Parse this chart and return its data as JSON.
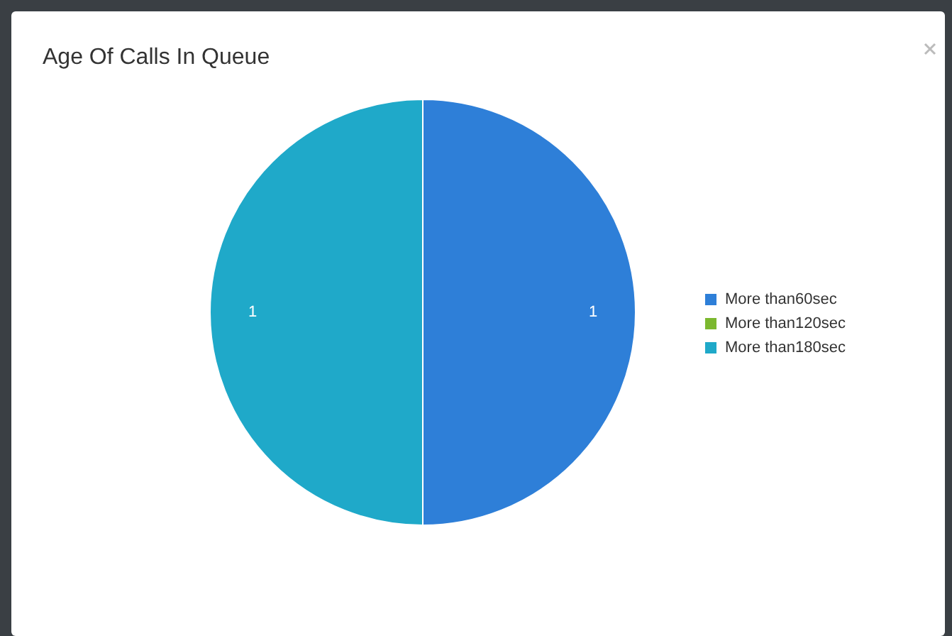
{
  "chart_data": {
    "type": "pie",
    "title": "Age Of Calls In Queue",
    "categories": [
      "More than60sec",
      "More than120sec",
      "More than180sec"
    ],
    "values": [
      1,
      0,
      1
    ],
    "colors": [
      "#2e7fd8",
      "#7cb82f",
      "#1fa9c9"
    ],
    "data_labels": true,
    "legend": "right"
  }
}
